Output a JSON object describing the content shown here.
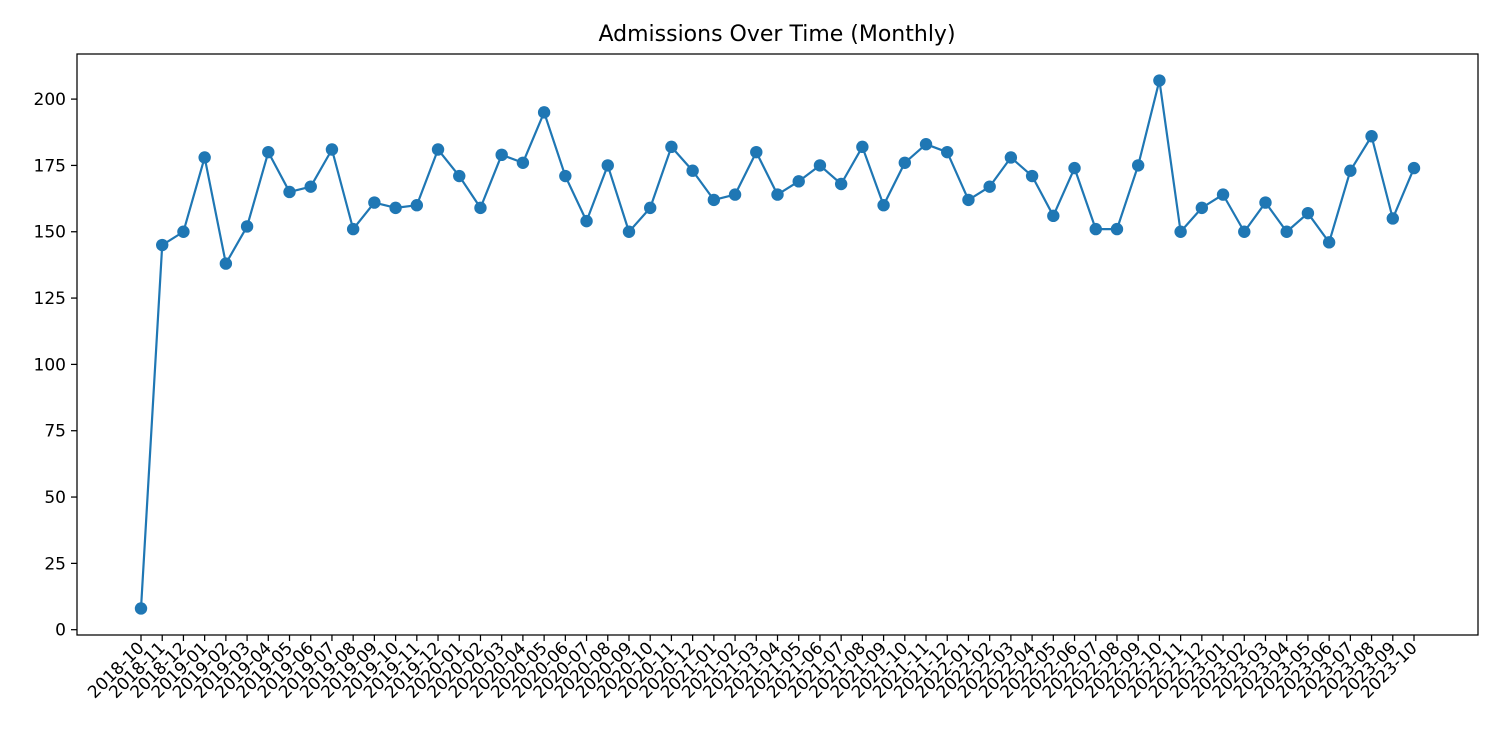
{
  "chart_data": {
    "type": "line",
    "title": "Admissions Over Time (Monthly)",
    "xlabel": "",
    "ylabel": "",
    "x": [
      "2018-10",
      "2018-11",
      "2018-12",
      "2019-01",
      "2019-02",
      "2019-03",
      "2019-04",
      "2019-05",
      "2019-06",
      "2019-07",
      "2019-08",
      "2019-09",
      "2019-10",
      "2019-11",
      "2019-12",
      "2020-01",
      "2020-02",
      "2020-03",
      "2020-04",
      "2020-05",
      "2020-06",
      "2020-07",
      "2020-08",
      "2020-09",
      "2020-10",
      "2020-11",
      "2020-12",
      "2021-01",
      "2021-02",
      "2021-03",
      "2021-04",
      "2021-05",
      "2021-06",
      "2021-07",
      "2021-08",
      "2021-09",
      "2021-10",
      "2021-11",
      "2021-12",
      "2022-01",
      "2022-02",
      "2022-03",
      "2022-04",
      "2022-05",
      "2022-06",
      "2022-07",
      "2022-08",
      "2022-09",
      "2022-10",
      "2022-11",
      "2022-12",
      "2023-01",
      "2023-02",
      "2023-03",
      "2023-04",
      "2023-05",
      "2023-06",
      "2023-07",
      "2023-08",
      "2023-09",
      "2023-10"
    ],
    "series": [
      {
        "values": [
          8,
          145,
          150,
          178,
          138,
          152,
          180,
          165,
          167,
          181,
          151,
          161,
          159,
          160,
          181,
          171,
          159,
          179,
          176,
          195,
          171,
          154,
          175,
          150,
          159,
          182,
          173,
          162,
          164,
          180,
          164,
          169,
          175,
          168,
          182,
          160,
          176,
          183,
          180,
          162,
          167,
          178,
          171,
          156,
          174,
          151,
          151,
          175,
          207,
          150,
          159,
          164,
          150,
          161,
          150,
          157,
          146,
          173,
          186,
          155,
          174
        ],
        "color": "#1f77b4"
      }
    ],
    "yticks": [
      0,
      25,
      50,
      75,
      100,
      125,
      150,
      175,
      200
    ],
    "ylim": [
      -2.0,
      217.0
    ],
    "grid": false,
    "legend": "none",
    "x_tick_rotation": 45
  }
}
